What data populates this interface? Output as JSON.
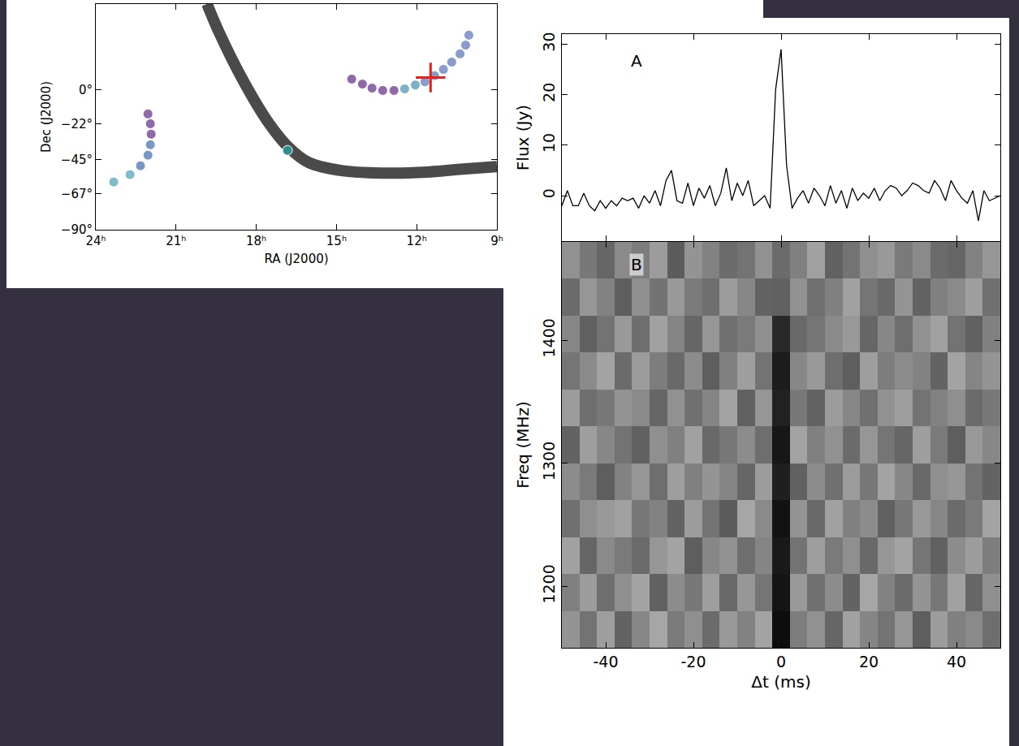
{
  "chart_data": [
    {
      "type": "scatter",
      "xlabel": "RA (J2000)",
      "ylabel": "Dec (J2000)",
      "xlim": [
        24,
        9
      ],
      "ylim": [
        -90,
        55
      ],
      "xticks": [
        {
          "value": 24,
          "label": "24ʰ"
        },
        {
          "value": 21,
          "label": "21ʰ"
        },
        {
          "value": 18,
          "label": "18ʰ"
        },
        {
          "value": 15,
          "label": "15ʰ"
        },
        {
          "value": 12,
          "label": "12ʰ"
        },
        {
          "value": 9,
          "label": "9ʰ"
        }
      ],
      "yticks": [
        {
          "value": 0,
          "label": "0°"
        },
        {
          "value": -22,
          "label": "−22°"
        },
        {
          "value": -45,
          "label": "−45°"
        },
        {
          "value": -67,
          "label": "−67°"
        },
        {
          "value": -90,
          "label": "−90°"
        }
      ],
      "grid": false,
      "series": [
        {
          "type": "line",
          "line_style": "solid",
          "color": "#2a2a2a",
          "x": [
            19.84,
            19.38,
            18.47,
            17.56,
            16.83,
            16.04,
            14.82,
            13.3,
            11.78,
            10.26,
            9.0
          ],
          "values": [
            55,
            36.4,
            5.2,
            -20.8,
            -36.4,
            -46.8,
            -52,
            -53.6,
            -53.1,
            -51,
            -49.4
          ]
        },
        {
          "type": "scatter",
          "marker": "circle",
          "colors": [
            "#8f6aa8",
            "#8f6aa8",
            "#8f6aa8",
            "#8f6aa8",
            "#8f6aa8",
            "#7fb1c4",
            "#7fb1c4",
            "#8a9ccc",
            "#8a9ccc",
            "#8a9ccc",
            "#8a9ccc",
            "#8a9ccc",
            "#8a9ccc",
            "#8a9ccc"
          ],
          "x": [
            14.43,
            14.03,
            13.67,
            13.27,
            12.85,
            12.45,
            12.05,
            11.69,
            11.33,
            11.0,
            10.69,
            10.38,
            10.17,
            10.05
          ],
          "values": [
            6.8,
            3.6,
            1,
            -0.5,
            -0.5,
            0.5,
            3,
            5,
            9,
            13,
            17.7,
            23,
            28.6,
            35
          ]
        },
        {
          "type": "scatter",
          "marker": "circle",
          "colors": [
            "#8f6aa8",
            "#8f6aa8",
            "#8f6aa8",
            "#7a98c4",
            "#7a98c4",
            "#7a98c4",
            "#7fbccb",
            "#7fbccb"
          ],
          "x": [
            22.05,
            21.96,
            21.93,
            21.96,
            22.05,
            22.33,
            22.72,
            23.33
          ],
          "values": [
            -15.6,
            -21.9,
            -28.6,
            -35.4,
            -42.1,
            -48.9,
            -54.6,
            -59.3
          ]
        },
        {
          "type": "scatter",
          "marker": "circle",
          "color": "#2f8f8f",
          "x": [
            16.83
          ],
          "values": [
            -39
          ]
        },
        {
          "type": "scatter",
          "marker": "cross",
          "color": "#e8211b",
          "x": [
            11.48
          ],
          "values": [
            7.8
          ]
        }
      ]
    },
    {
      "type": "line",
      "ylabel": "Flux (Jy)",
      "annotations": [
        "A"
      ],
      "color": "#000000",
      "tick_labels": "y",
      "grid": false,
      "xlim": [
        -50,
        50
      ],
      "xticks": [
        -40,
        -20,
        0,
        20,
        40
      ],
      "ylim": [
        -9,
        32
      ],
      "yticks": [
        0,
        10,
        20,
        30
      ],
      "x": [
        -50,
        -48.75,
        -47.5,
        -46.25,
        -45,
        -43.75,
        -42.5,
        -41.25,
        -40,
        -38.75,
        -37.5,
        -36.25,
        -35,
        -33.75,
        -32.5,
        -31.25,
        -30,
        -28.75,
        -27.5,
        -26.25,
        -25,
        -23.75,
        -22.5,
        -21.25,
        -20,
        -18.75,
        -17.5,
        -16.25,
        -15,
        -13.75,
        -12.5,
        -11.25,
        -10,
        -8.75,
        -7.5,
        -6.25,
        -5,
        -3.75,
        -2.5,
        -1.25,
        0,
        1.25,
        2.5,
        3.75,
        5,
        6.25,
        7.5,
        8.75,
        10,
        11.25,
        12.5,
        13.75,
        15,
        16.25,
        17.5,
        18.75,
        20,
        21.25,
        22.5,
        23.75,
        25,
        26.25,
        27.5,
        28.75,
        30,
        31.25,
        32.5,
        33.75,
        35,
        36.25,
        37.5,
        38.75,
        40,
        41.25,
        42.5,
        43.75,
        45,
        46.25,
        47.5,
        48.75,
        50
      ],
      "values": [
        -2,
        1,
        -2,
        -2,
        0.5,
        -2,
        -3,
        -1,
        -2.5,
        -1,
        -2,
        -0.5,
        -1,
        -0.5,
        -2.5,
        0,
        -1.5,
        1,
        -2,
        3,
        5,
        -1,
        -1.5,
        2.5,
        -2,
        1.5,
        -0.5,
        2,
        -2,
        0.5,
        5.5,
        -1,
        2.5,
        0,
        3,
        -2,
        -1,
        0,
        -2.5,
        21,
        29,
        6,
        -2.5,
        -0.5,
        1,
        -1.5,
        1.5,
        0,
        -2,
        2,
        -1.5,
        1,
        -2.5,
        1.5,
        -1,
        0.5,
        -0.5,
        1.5,
        -1,
        1,
        2,
        1.5,
        0,
        1,
        2.5,
        2,
        1,
        0.5,
        3,
        1.5,
        -1,
        3,
        1,
        -0.5,
        -1.5,
        1,
        -5,
        1,
        -1,
        -0.5,
        0
      ]
    },
    {
      "type": "heatmap",
      "xlabel": "Δt (ms)",
      "ylabel": "Freq (MHz)",
      "annotations": [
        "B"
      ],
      "grid": false,
      "xlim": [
        -50,
        50
      ],
      "xticks": [
        -40,
        -20,
        0,
        20,
        40
      ],
      "ylim": [
        1150,
        1480
      ],
      "yticks": [
        1200,
        1300,
        1400
      ],
      "zlim": [
        0,
        1
      ],
      "x": [
        -48,
        -44,
        -40,
        -36,
        -32,
        -28,
        -24,
        -20,
        -16,
        -12,
        -8,
        -4,
        0,
        4,
        8,
        12,
        16,
        20,
        24,
        28,
        32,
        36,
        40,
        44,
        48
      ],
      "y": [
        1165,
        1195,
        1225,
        1255,
        1285,
        1315,
        1345,
        1375,
        1405,
        1435,
        1465
      ],
      "z": [
        [
          0.42,
          0.55,
          0.38,
          0.61,
          0.47,
          0.35,
          0.52,
          0.44,
          0.58,
          0.4,
          0.49,
          0.36,
          0.95,
          0.51,
          0.43,
          0.6,
          0.37,
          0.48,
          0.55,
          0.41,
          0.63,
          0.39,
          0.5,
          0.46,
          0.57
        ],
        [
          0.5,
          0.39,
          0.57,
          0.44,
          0.36,
          0.62,
          0.45,
          0.53,
          0.38,
          0.59,
          0.41,
          0.54,
          0.92,
          0.4,
          0.56,
          0.45,
          0.61,
          0.35,
          0.49,
          0.58,
          0.42,
          0.53,
          0.37,
          0.6,
          0.44
        ],
        [
          0.37,
          0.6,
          0.46,
          0.52,
          0.58,
          0.41,
          0.36,
          0.63,
          0.47,
          0.43,
          0.57,
          0.48,
          0.9,
          0.55,
          0.38,
          0.52,
          0.44,
          0.59,
          0.41,
          0.36,
          0.54,
          0.62,
          0.45,
          0.39,
          0.51
        ],
        [
          0.56,
          0.44,
          0.4,
          0.37,
          0.53,
          0.49,
          0.61,
          0.39,
          0.55,
          0.64,
          0.35,
          0.46,
          0.93,
          0.42,
          0.59,
          0.37,
          0.5,
          0.45,
          0.62,
          0.53,
          0.4,
          0.47,
          0.58,
          0.52,
          0.36
        ],
        [
          0.45,
          0.52,
          0.63,
          0.49,
          0.41,
          0.57,
          0.38,
          0.5,
          0.42,
          0.48,
          0.6,
          0.39,
          0.88,
          0.62,
          0.45,
          0.56,
          0.39,
          0.53,
          0.36,
          0.47,
          0.59,
          0.44,
          0.41,
          0.55,
          0.61
        ],
        [
          0.61,
          0.38,
          0.47,
          0.55,
          0.62,
          0.44,
          0.5,
          0.37,
          0.59,
          0.53,
          0.45,
          0.57,
          0.91,
          0.36,
          0.5,
          0.43,
          0.58,
          0.41,
          0.54,
          0.6,
          0.38,
          0.52,
          0.63,
          0.4,
          0.47
        ],
        [
          0.39,
          0.57,
          0.53,
          0.42,
          0.46,
          0.6,
          0.43,
          0.56,
          0.48,
          0.36,
          0.62,
          0.41,
          0.87,
          0.53,
          0.61,
          0.39,
          0.47,
          0.56,
          0.43,
          0.38,
          0.55,
          0.49,
          0.44,
          0.58,
          0.53
        ],
        [
          0.54,
          0.46,
          0.36,
          0.58,
          0.39,
          0.51,
          0.59,
          0.45,
          0.63,
          0.5,
          0.38,
          0.55,
          0.89,
          0.47,
          0.4,
          0.57,
          0.63,
          0.38,
          0.51,
          0.45,
          0.49,
          0.61,
          0.36,
          0.48,
          0.42
        ],
        [
          0.47,
          0.62,
          0.55,
          0.4,
          0.57,
          0.37,
          0.48,
          0.6,
          0.41,
          0.56,
          0.52,
          0.44,
          0.84,
          0.59,
          0.54,
          0.46,
          0.4,
          0.6,
          0.47,
          0.57,
          0.43,
          0.37,
          0.55,
          0.62,
          0.5
        ],
        [
          0.58,
          0.41,
          0.49,
          0.63,
          0.44,
          0.55,
          0.4,
          0.52,
          0.57,
          0.39,
          0.47,
          0.61,
          0.62,
          0.43,
          0.56,
          0.5,
          0.37,
          0.54,
          0.59,
          0.42,
          0.61,
          0.5,
          0.46,
          0.38,
          0.56
        ],
        [
          0.43,
          0.53,
          0.6,
          0.46,
          0.51,
          0.39,
          0.64,
          0.42,
          0.49,
          0.58,
          0.55,
          0.43,
          0.58,
          0.5,
          0.37,
          0.62,
          0.55,
          0.44,
          0.4,
          0.52,
          0.46,
          0.58,
          0.6,
          0.49,
          0.41
        ]
      ]
    }
  ]
}
